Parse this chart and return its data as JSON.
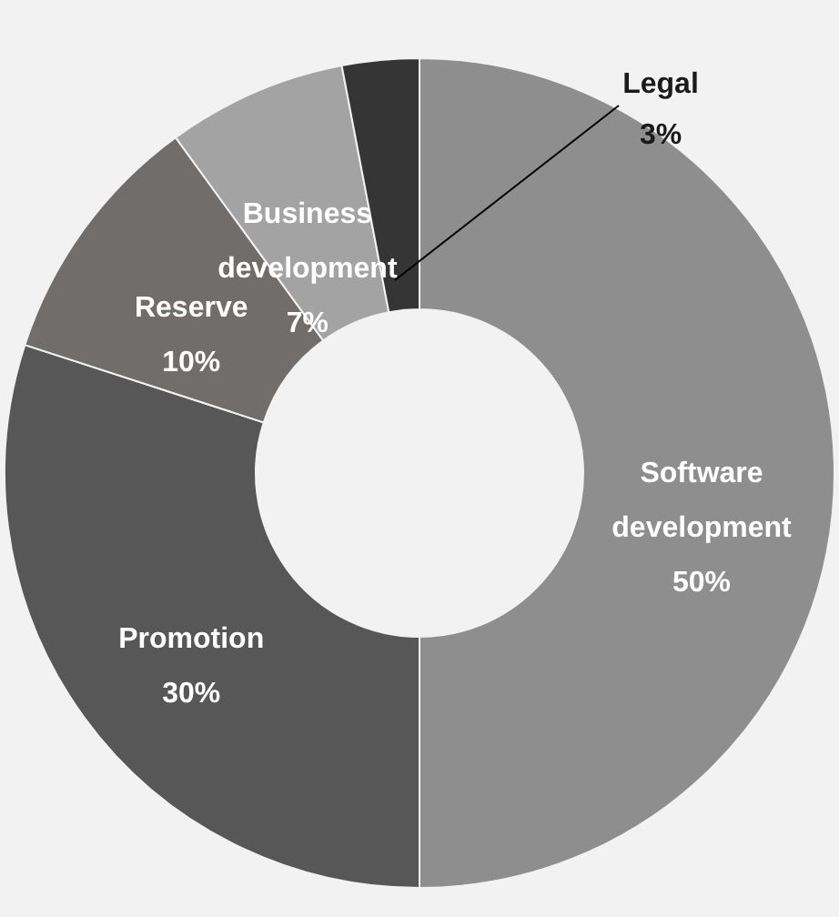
{
  "chart_data": {
    "type": "donut",
    "categories": [
      "Software development",
      "Promotion",
      "Reserve",
      "Business development",
      "Legal"
    ],
    "values": [
      50,
      30,
      10,
      7,
      3
    ],
    "value_labels": [
      "50%",
      "30%",
      "10%",
      "7%",
      "3%"
    ],
    "colors": [
      "#8e8e8e",
      "#575757",
      "#716d6a",
      "#a3a3a3",
      "#353535"
    ]
  }
}
